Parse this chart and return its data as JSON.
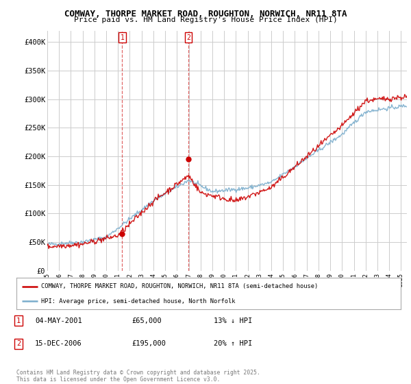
{
  "title1": "COMWAY, THORPE MARKET ROAD, ROUGHTON, NORWICH, NR11 8TA",
  "title2": "Price paid vs. HM Land Registry's House Price Index (HPI)",
  "ylabel_ticks": [
    "£0",
    "£50K",
    "£100K",
    "£150K",
    "£200K",
    "£250K",
    "£300K",
    "£350K",
    "£400K"
  ],
  "ytick_vals": [
    0,
    50000,
    100000,
    150000,
    200000,
    250000,
    300000,
    350000,
    400000
  ],
  "ylim": [
    0,
    420000
  ],
  "sale1_date": "04-MAY-2001",
  "sale1_price": 65000,
  "sale1_hpi": "13% ↓ HPI",
  "sale1_x": 2001.35,
  "sale2_date": "15-DEC-2006",
  "sale2_price": 195000,
  "sale2_hpi": "20% ↑ HPI",
  "sale2_x": 2006.96,
  "legend_label1": "COMWAY, THORPE MARKET ROAD, ROUGHTON, NORWICH, NR11 8TA (semi-detached house)",
  "legend_label2": "HPI: Average price, semi-detached house, North Norfolk",
  "footer": "Contains HM Land Registry data © Crown copyright and database right 2025.\nThis data is licensed under the Open Government Licence v3.0.",
  "line_color_red": "#cc0000",
  "line_color_blue": "#7aadcc",
  "background_color": "#ffffff",
  "plot_bg_color": "#ffffff",
  "grid_color": "#cccccc"
}
